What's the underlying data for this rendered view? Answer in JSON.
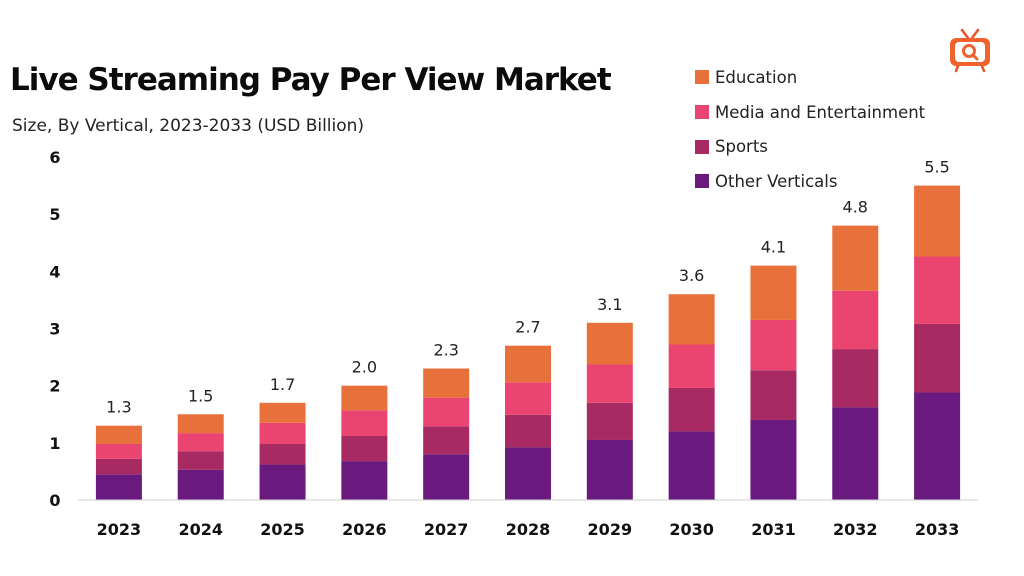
{
  "title": "Live Streaming Pay Per View Market",
  "subtitle": "Size, By Vertical, 2023-2033 (USD Billion)",
  "legend": [
    {
      "label": "Education",
      "color": "#E8703A"
    },
    {
      "label": "Media and Entertainment",
      "color": "#EA4470"
    },
    {
      "label": "Sports",
      "color": "#A82A63"
    },
    {
      "label": "Other Verticals",
      "color": "#6A1A7E"
    }
  ],
  "logo_icon": "tv-search-logo-icon",
  "chart_data": {
    "type": "bar",
    "stacked": true,
    "title": "Live Streaming Pay Per View Market",
    "subtitle": "Size, By Vertical, 2023-2033 (USD Billion)",
    "xlabel": "",
    "ylabel": "",
    "ylim": [
      0,
      6
    ],
    "yticks": [
      "0",
      "1",
      "2",
      "3",
      "4",
      "5",
      "6"
    ],
    "grid": false,
    "legend_position": "top-right",
    "categories": [
      "2023",
      "2024",
      "2025",
      "2026",
      "2027",
      "2028",
      "2029",
      "2030",
      "2031",
      "2032",
      "2033"
    ],
    "totals": [
      "1.3",
      "1.5",
      "1.7",
      "2.0",
      "2.3",
      "2.7",
      "3.1",
      "3.6",
      "4.1",
      "4.8",
      "5.5"
    ],
    "series": [
      {
        "name": "Other Verticals",
        "color": "#6A1A7E",
        "values": [
          0.45,
          0.53,
          0.62,
          0.68,
          0.8,
          0.92,
          1.05,
          1.2,
          1.4,
          1.62,
          1.88
        ]
      },
      {
        "name": "Sports",
        "color": "#A82A63",
        "values": [
          0.27,
          0.32,
          0.36,
          0.44,
          0.49,
          0.57,
          0.65,
          0.76,
          0.87,
          1.02,
          1.2
        ]
      },
      {
        "name": "Media and Entertainment",
        "color": "#EA4470",
        "values": [
          0.26,
          0.32,
          0.37,
          0.45,
          0.5,
          0.57,
          0.67,
          0.76,
          0.88,
          1.02,
          1.18
        ]
      },
      {
        "name": "Education",
        "color": "#E8703A",
        "values": [
          0.32,
          0.33,
          0.35,
          0.43,
          0.51,
          0.64,
          0.73,
          0.88,
          0.95,
          1.14,
          1.24
        ]
      }
    ]
  }
}
